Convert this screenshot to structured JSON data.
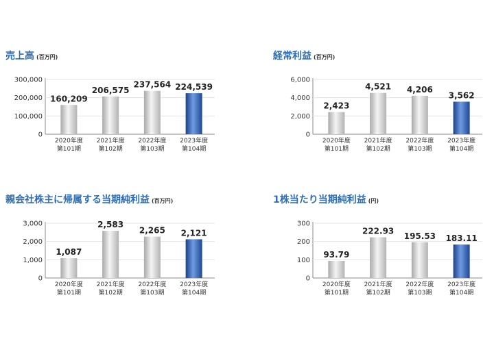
{
  "chart_data": [
    {
      "type": "bar",
      "title": "売上高",
      "unit": "(百万円)",
      "categories": [
        [
          "2020年度",
          "第101期"
        ],
        [
          "2021年度",
          "第102期"
        ],
        [
          "2022年度",
          "第103期"
        ],
        [
          "2023年度",
          "第104期"
        ]
      ],
      "values": [
        160209,
        206575,
        237564,
        224539
      ],
      "value_labels": [
        "160,209",
        "206,575",
        "237,564",
        "224,539"
      ],
      "yticks": [
        "0",
        "100,000",
        "200,000",
        "300,000"
      ],
      "ylim": [
        0,
        300000
      ],
      "highlight_index": 3
    },
    {
      "type": "bar",
      "title": "経常利益",
      "unit": "(百万円)",
      "categories": [
        [
          "2020年度",
          "第101期"
        ],
        [
          "2021年度",
          "第102期"
        ],
        [
          "2022年度",
          "第103期"
        ],
        [
          "2023年度",
          "第104期"
        ]
      ],
      "values": [
        2423,
        4521,
        4206,
        3562
      ],
      "value_labels": [
        "2,423",
        "4,521",
        "4,206",
        "3,562"
      ],
      "yticks": [
        "0",
        "2,000",
        "4,000",
        "6,000"
      ],
      "ylim": [
        0,
        6000
      ],
      "highlight_index": 3
    },
    {
      "type": "bar",
      "title": "親会社株主に帰属する当期純利益",
      "unit": "(百万円)",
      "categories": [
        [
          "2020年度",
          "第101期"
        ],
        [
          "2021年度",
          "第102期"
        ],
        [
          "2022年度",
          "第103期"
        ],
        [
          "2023年度",
          "第104期"
        ]
      ],
      "values": [
        1087,
        2583,
        2265,
        2121
      ],
      "value_labels": [
        "1,087",
        "2,583",
        "2,265",
        "2,121"
      ],
      "yticks": [
        "0",
        "1,000",
        "2,000",
        "3,000"
      ],
      "ylim": [
        0,
        3000
      ],
      "highlight_index": 3
    },
    {
      "type": "bar",
      "title": "1株当たり当期純利益",
      "unit": "(円)",
      "categories": [
        [
          "2020年度",
          "第101期"
        ],
        [
          "2021年度",
          "第102期"
        ],
        [
          "2022年度",
          "第103期"
        ],
        [
          "2023年度",
          "第104期"
        ]
      ],
      "values": [
        93.79,
        222.93,
        195.53,
        183.11
      ],
      "value_labels": [
        "93.79",
        "222.93",
        "195.53",
        "183.11"
      ],
      "yticks": [
        "0",
        "100",
        "200",
        "300"
      ],
      "ylim": [
        0,
        300
      ],
      "highlight_index": 3
    }
  ],
  "colors": {
    "title": "#2f6db5",
    "bar_gray": "#c8c8c8",
    "bar_highlight": "#3b6fc0"
  }
}
